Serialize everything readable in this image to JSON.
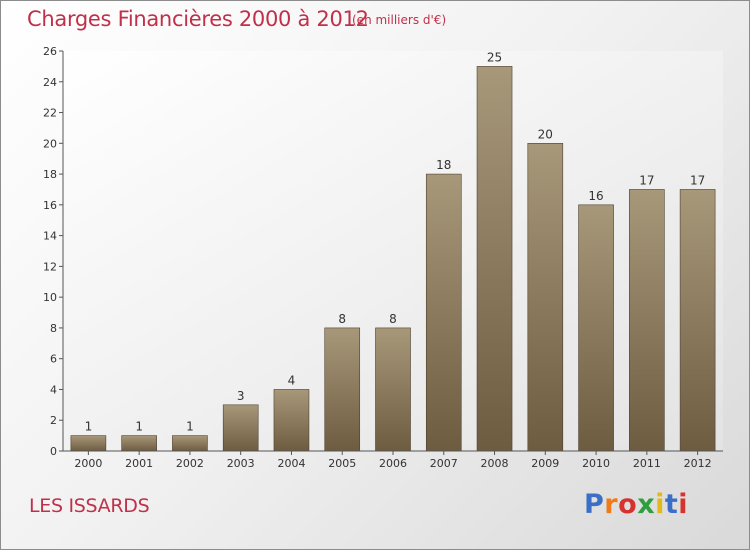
{
  "header": {
    "title": "Charges Financières 2000 à 2012",
    "unit": "(en milliers d'€)"
  },
  "footer": {
    "commune": "LES ISSARDS",
    "brand": [
      "P",
      "r",
      "o",
      "x",
      "i",
      "t",
      "i"
    ]
  },
  "colors": {
    "title": "#c0304a",
    "bar_top": "#a8987a",
    "bar_bottom": "#6e5c40",
    "brand": [
      "#3b6fc7",
      "#f07a1a",
      "#d6322f",
      "#2f9e3f",
      "#e5b81a",
      "#3b6fc7",
      "#d6322f"
    ]
  },
  "chart_data": {
    "type": "bar",
    "categories": [
      "2000",
      "2001",
      "2002",
      "2003",
      "2004",
      "2005",
      "2006",
      "2007",
      "2008",
      "2009",
      "2010",
      "2011",
      "2012"
    ],
    "values": [
      1,
      1,
      1,
      3,
      4,
      8,
      8,
      18,
      25,
      20,
      16,
      17,
      17
    ],
    "data_labels": [
      "1",
      "1",
      "1",
      "3",
      "4",
      "8",
      "8",
      "18",
      "25",
      "20",
      "16",
      "17",
      "17"
    ],
    "y_ticks": [
      "0",
      "2",
      "4",
      "6",
      "8",
      "10",
      "12",
      "14",
      "16",
      "18",
      "20",
      "22",
      "24",
      "26"
    ],
    "ylim": [
      0,
      26
    ],
    "grid": false,
    "legend": "none"
  }
}
